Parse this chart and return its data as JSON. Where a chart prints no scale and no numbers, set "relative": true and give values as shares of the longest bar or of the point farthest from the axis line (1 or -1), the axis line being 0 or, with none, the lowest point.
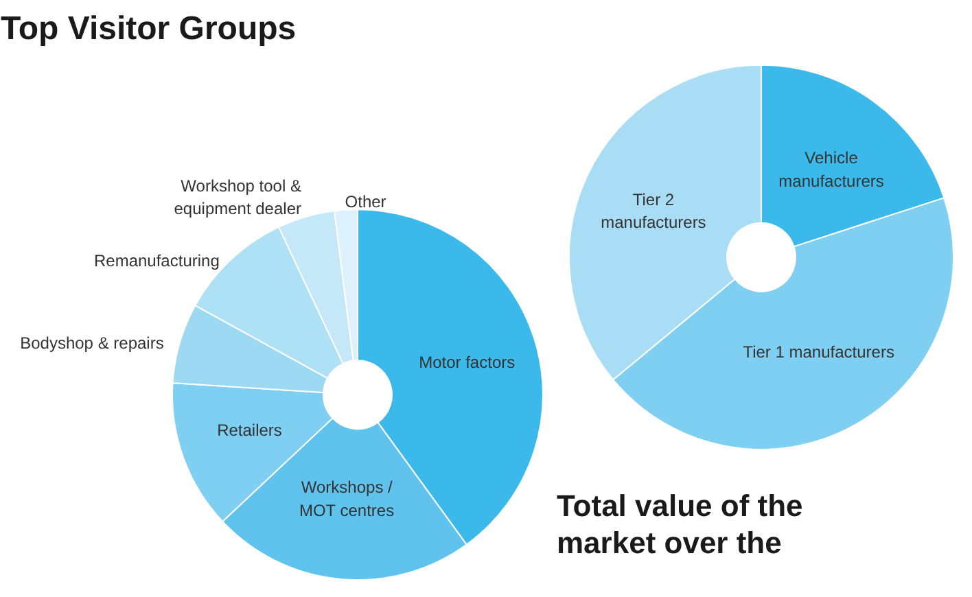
{
  "chart_data": [
    {
      "type": "donut",
      "title": "Top Visitor Groups",
      "relative": true,
      "categories": [
        "Motor factors",
        "Workshops /\nMOT centres",
        "Retailers",
        "Bodyshop & repairs",
        "Remanufacturing",
        "Workshop tool &\nequipment dealer",
        "Other"
      ],
      "values": [
        40,
        23,
        13,
        7,
        10,
        5,
        2
      ],
      "colors": [
        "#3cb9eb",
        "#5fc3ee",
        "#7fcff2",
        "#9ed9f4",
        "#aee0f6",
        "#c5e8f8",
        "#dcf1fb"
      ]
    },
    {
      "type": "donut",
      "relative": true,
      "categories": [
        "Vehicle\nmanufacturers",
        "Tier 1 manufacturers",
        "Tier 2\nmanufacturers"
      ],
      "values": [
        20,
        44,
        36
      ],
      "colors": [
        "#3cb9eb",
        "#7fcff2",
        "#a9ddf5"
      ],
      "annotations": [
        "Total value of the",
        "market over the"
      ]
    }
  ]
}
